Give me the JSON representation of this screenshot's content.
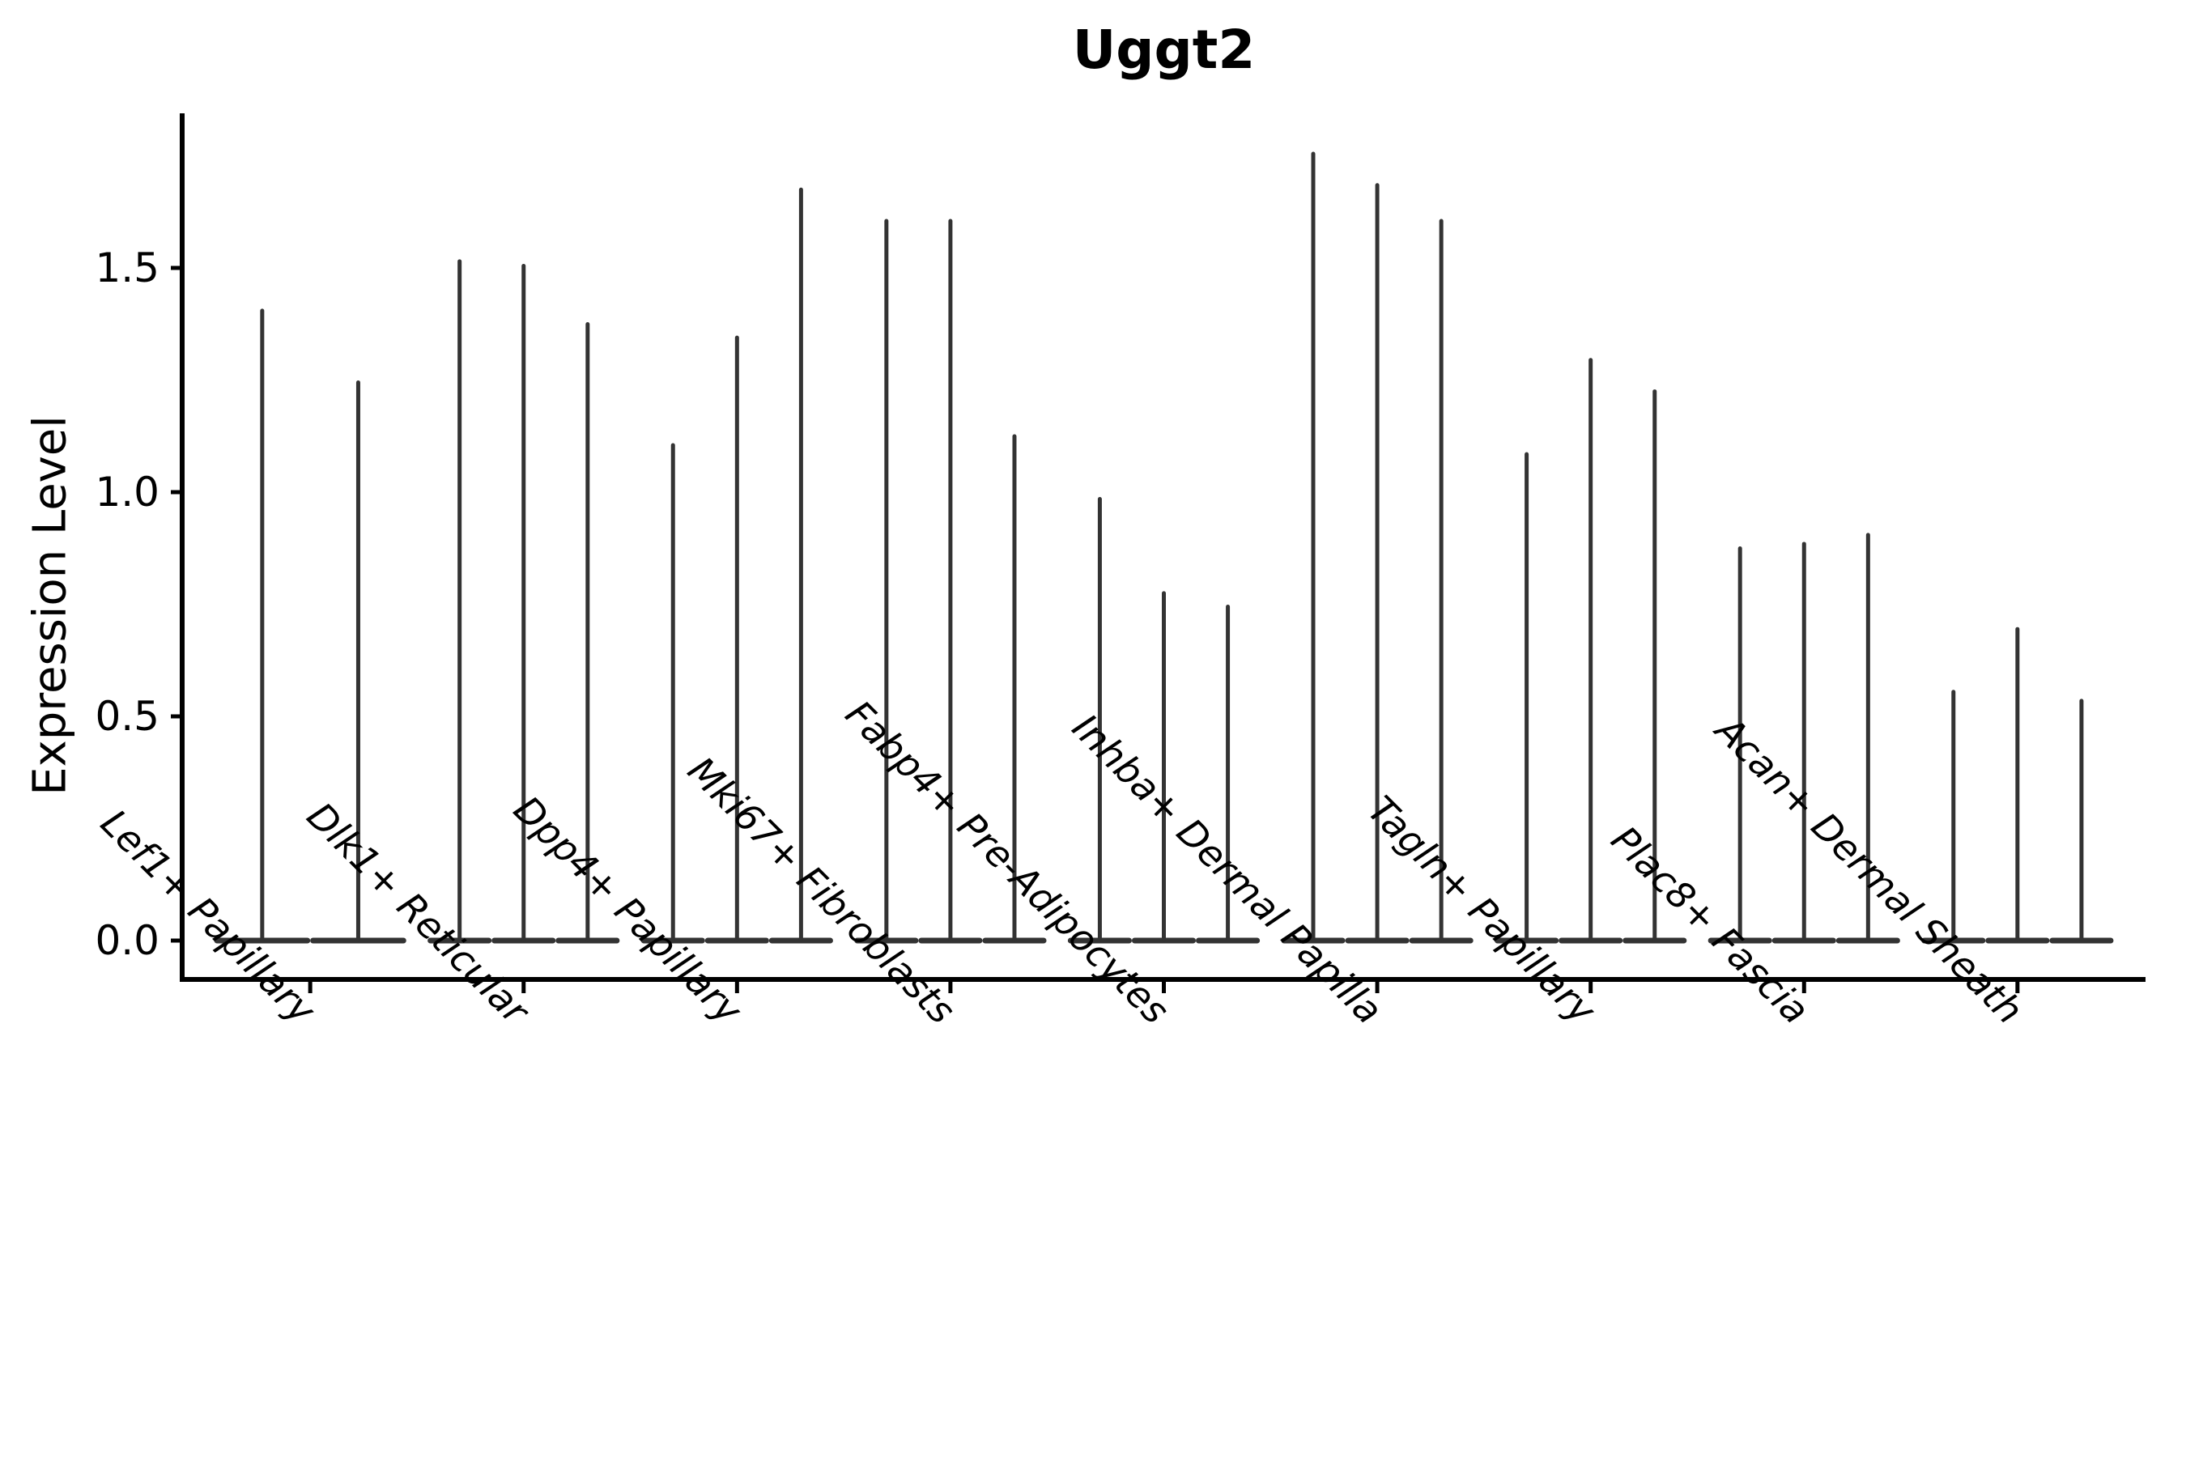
{
  "chart_data": {
    "type": "violin",
    "title": "Uggt2",
    "xlabel": "",
    "ylabel": "Expression Level",
    "ylim": [
      0,
      1.85
    ],
    "grid": false,
    "legend": "none",
    "y_ticks": [
      0.0,
      0.5,
      1.0,
      1.5
    ],
    "y_tick_labels": [
      "0.0",
      "0.5",
      "1.0",
      "1.5"
    ],
    "baseline_value": 0.0,
    "description": "Each category shows thin violins: bulk of density at 0 (flat wide base) with a thin tail rising to the max expression value.",
    "groups": [
      {
        "label": "Lef1+ Papillary",
        "violin_max": [
          1.41,
          1.25
        ]
      },
      {
        "label": "Dlk1+ Reticular",
        "violin_max": [
          1.52,
          1.51,
          1.38
        ]
      },
      {
        "label": "Dpp4+ Papillary",
        "violin_max": [
          1.11,
          1.35,
          1.68
        ]
      },
      {
        "label": "Mki67+ Fibroblasts",
        "violin_max": [
          1.61,
          1.61,
          1.13
        ]
      },
      {
        "label": "Fabp4+ Pre-Adipocytes",
        "violin_max": [
          0.99,
          0.78,
          0.75
        ]
      },
      {
        "label": "Inhba+ Dermal Papilla",
        "violin_max": [
          1.76,
          1.69,
          1.61
        ]
      },
      {
        "label": "Tagln+ Papillary",
        "violin_max": [
          1.09,
          1.3,
          1.23
        ]
      },
      {
        "label": "Plac8+ Fascia",
        "violin_max": [
          0.88,
          0.89,
          0.91
        ]
      },
      {
        "label": "Acan+ Dermal Sheath",
        "violin_max": [
          0.56,
          0.7,
          0.54
        ]
      }
    ],
    "colors": {
      "violin": "#333333",
      "axis": "#000000",
      "text": "#000000"
    }
  }
}
